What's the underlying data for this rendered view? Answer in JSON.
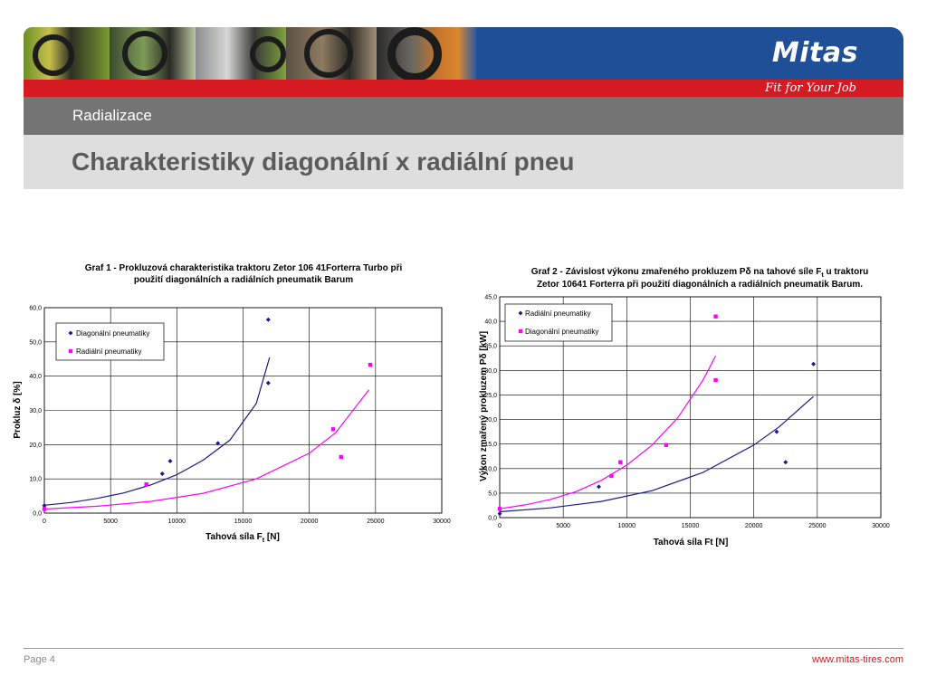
{
  "header": {
    "logo": "Mitas",
    "slogan": "Fit for Your Job",
    "section": "Radializace",
    "title": "Charakteristiky diagonální x radiální pneu"
  },
  "footer": {
    "page": "Page 4",
    "url": "www.mitas-tires.com"
  },
  "colors": {
    "red": "#d61a21",
    "navy": "#1a1a8c",
    "magenta": "#ff00ff",
    "grey_band": "#747474",
    "title_band": "#dedede"
  },
  "chart_data": [
    {
      "type": "scatter",
      "title_line1": "Graf 1 - Prokluzová charakteristika traktoru Zetor 106 41Forterra Turbo při",
      "title_line2": "použití diagonálních a radiálních pneumatik Barum",
      "xlabel": "Tahová síla F",
      "xlabel_sub": "t",
      "xlabel_unit": " [N]",
      "ylabel": "Prokluz δ [%]",
      "xlim": [
        0,
        30000
      ],
      "ylim": [
        0,
        60
      ],
      "x_ticks": [
        0,
        5000,
        10000,
        15000,
        20000,
        25000,
        30000
      ],
      "y_ticks": [
        "0,0",
        "10,0",
        "20,0",
        "30,0",
        "40,0",
        "50,0",
        "60,0"
      ],
      "legend": "top-left",
      "series": [
        {
          "name": "Diagonální pneumatiky",
          "color": "#1a1a8c",
          "marker": "diamond",
          "points": [
            [
              0,
              2.2
            ],
            [
              8900,
              11.5
            ],
            [
              9500,
              15.2
            ],
            [
              13100,
              20.4
            ],
            [
              16900,
              38.0
            ],
            [
              16900,
              56.5
            ]
          ],
          "trend": [
            [
              0,
              2.3
            ],
            [
              2000,
              3.1
            ],
            [
              4000,
              4.3
            ],
            [
              6000,
              5.9
            ],
            [
              8000,
              8.2
            ],
            [
              10000,
              11.2
            ],
            [
              12000,
              15.5
            ],
            [
              14000,
              21.3
            ],
            [
              16000,
              32.0
            ],
            [
              17000,
              45.5
            ]
          ]
        },
        {
          "name": "Radiální pneumatiky",
          "color": "#ff00ff",
          "marker": "square",
          "points": [
            [
              0,
              1.2
            ],
            [
              7700,
              8.4
            ],
            [
              21800,
              24.5
            ],
            [
              22400,
              16.4
            ],
            [
              24600,
              43.3
            ]
          ],
          "trend": [
            [
              0,
              1.2
            ],
            [
              4000,
              2.0
            ],
            [
              8000,
              3.4
            ],
            [
              12000,
              5.8
            ],
            [
              16000,
              10.0
            ],
            [
              20000,
              17.5
            ],
            [
              22000,
              23.5
            ],
            [
              24500,
              36.0
            ]
          ]
        }
      ]
    },
    {
      "type": "scatter",
      "title_line1_a": "Graf 2 - Závislost výkonu zmařeného prokluzem Pδ na  tahové síle F",
      "title_line1_sub": "t",
      "title_line1_b": " u traktoru",
      "title_line2": "Zetor 10641 Forterra při použití diagonálních a radiálních pneumatik Barum.",
      "xlabel": "Tahová síla Ft [N]",
      "ylabel": "Výkon zmařený prokluzem Pδ [kW]",
      "xlim": [
        0,
        30000
      ],
      "ylim": [
        0,
        45
      ],
      "x_ticks": [
        0,
        5000,
        10000,
        15000,
        20000,
        25000,
        30000
      ],
      "y_ticks": [
        "0,0",
        "5,0",
        "10,0",
        "15,0",
        "20,0",
        "25,0",
        "30,0",
        "35,0",
        "40,0",
        "45,0"
      ],
      "legend": "top-left",
      "series": [
        {
          "name": "Radiální pneumatiky",
          "color": "#1a1a8c",
          "marker": "diamond",
          "points": [
            [
              0,
              0.8
            ],
            [
              7800,
              6.3
            ],
            [
              21800,
              17.5
            ],
            [
              22500,
              11.3
            ],
            [
              24700,
              31.3
            ]
          ],
          "trend": [
            [
              0,
              1.2
            ],
            [
              4000,
              2.0
            ],
            [
              8000,
              3.3
            ],
            [
              12000,
              5.5
            ],
            [
              16000,
              9.2
            ],
            [
              20000,
              14.8
            ],
            [
              22000,
              18.5
            ],
            [
              24700,
              24.7
            ]
          ]
        },
        {
          "name": "Diagonální pneumatiky",
          "color": "#ff00ff",
          "marker": "square",
          "points": [
            [
              0,
              1.8
            ],
            [
              8800,
              8.5
            ],
            [
              9500,
              11.3
            ],
            [
              13100,
              14.8
            ],
            [
              17000,
              28.0
            ],
            [
              17000,
              41.0
            ]
          ],
          "trend": [
            [
              0,
              1.8
            ],
            [
              2000,
              2.6
            ],
            [
              4000,
              3.7
            ],
            [
              6000,
              5.3
            ],
            [
              8000,
              7.6
            ],
            [
              10000,
              10.7
            ],
            [
              12000,
              14.8
            ],
            [
              14000,
              20.3
            ],
            [
              16000,
              28.0
            ],
            [
              17000,
              33.0
            ]
          ]
        }
      ]
    }
  ]
}
